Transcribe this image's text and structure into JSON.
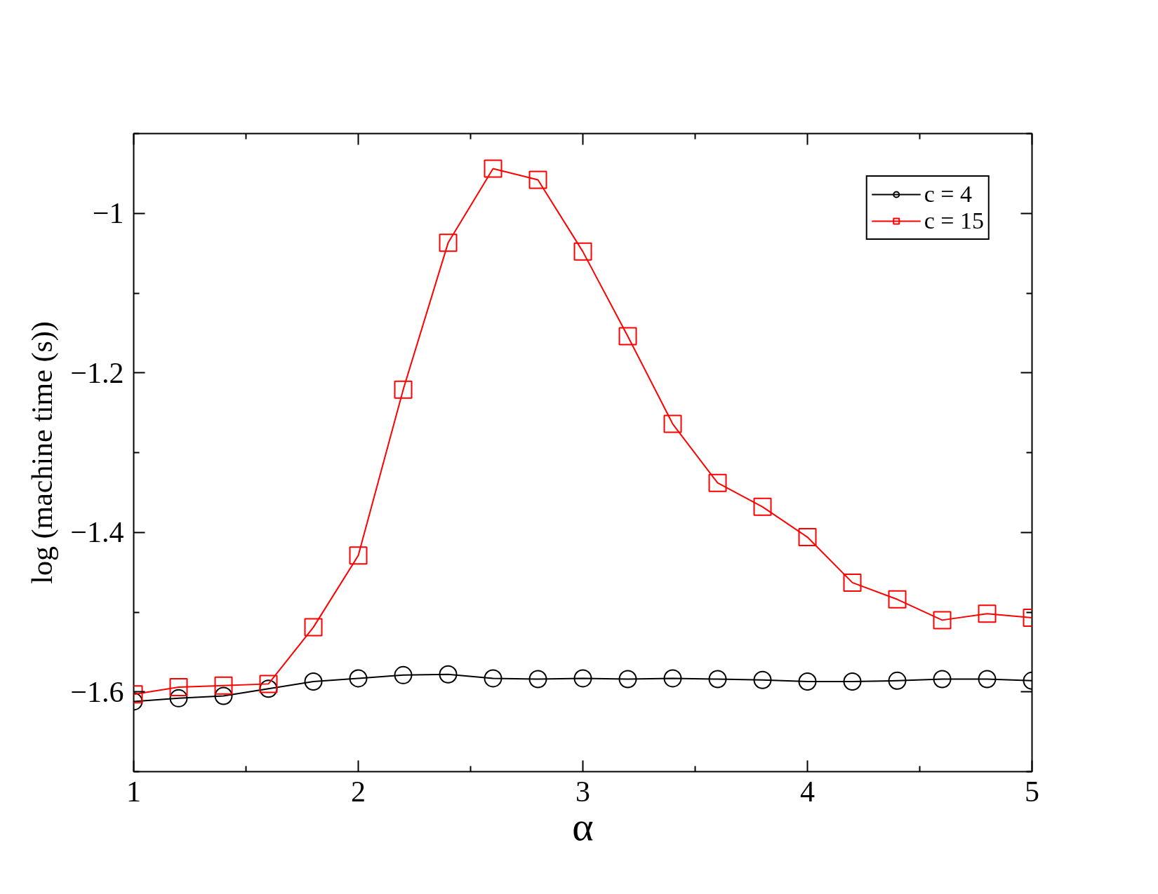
{
  "chart_data": {
    "type": "line",
    "xlabel": "α",
    "ylabel": "log (machine time (s))",
    "x": [
      1.0,
      1.2,
      1.4,
      1.6,
      1.8,
      2.0,
      2.2,
      2.4,
      2.6,
      2.8,
      3.0,
      3.2,
      3.4,
      3.6,
      3.8,
      4.0,
      4.2,
      4.4,
      4.6,
      4.8,
      5.0
    ],
    "series": [
      {
        "name": "c = 4",
        "color": "#000000",
        "marker": "circle",
        "values": [
          -1.612,
          -1.608,
          -1.605,
          -1.596,
          -1.587,
          -1.583,
          -1.579,
          -1.578,
          -1.583,
          -1.584,
          -1.583,
          -1.584,
          -1.583,
          -1.584,
          -1.585,
          -1.587,
          -1.587,
          -1.586,
          -1.584,
          -1.584,
          -1.586
        ]
      },
      {
        "name": "c = 15",
        "color": "#ff0000",
        "marker": "square",
        "values": [
          -1.603,
          -1.594,
          -1.592,
          -1.59,
          -1.519,
          -1.429,
          -1.221,
          -1.037,
          -0.944,
          -0.958,
          -1.048,
          -1.154,
          -1.264,
          -1.338,
          -1.368,
          -1.406,
          -1.463,
          -1.484,
          -1.51,
          -1.502,
          -1.507
        ]
      }
    ],
    "xlim": [
      1,
      5
    ],
    "ylim": [
      -1.7,
      -0.9
    ],
    "xticks": [
      1,
      {
        "value": 1.5,
        "label": null
      },
      2,
      {
        "value": 2.5,
        "label": null
      },
      3,
      {
        "value": 3.5,
        "label": null
      },
      4,
      {
        "value": 4.5,
        "label": null
      },
      5
    ],
    "yticks": [
      {
        "value": -1.7,
        "label": null
      },
      -1.6,
      {
        "value": -1.5,
        "label": null
      },
      -1.4,
      {
        "value": -1.3,
        "label": null
      },
      -1.2,
      {
        "value": -1.1,
        "label": null
      },
      -1,
      {
        "value": -0.9,
        "label": null
      }
    ],
    "grid": false,
    "legend": "top right",
    "line_style": "solid"
  }
}
